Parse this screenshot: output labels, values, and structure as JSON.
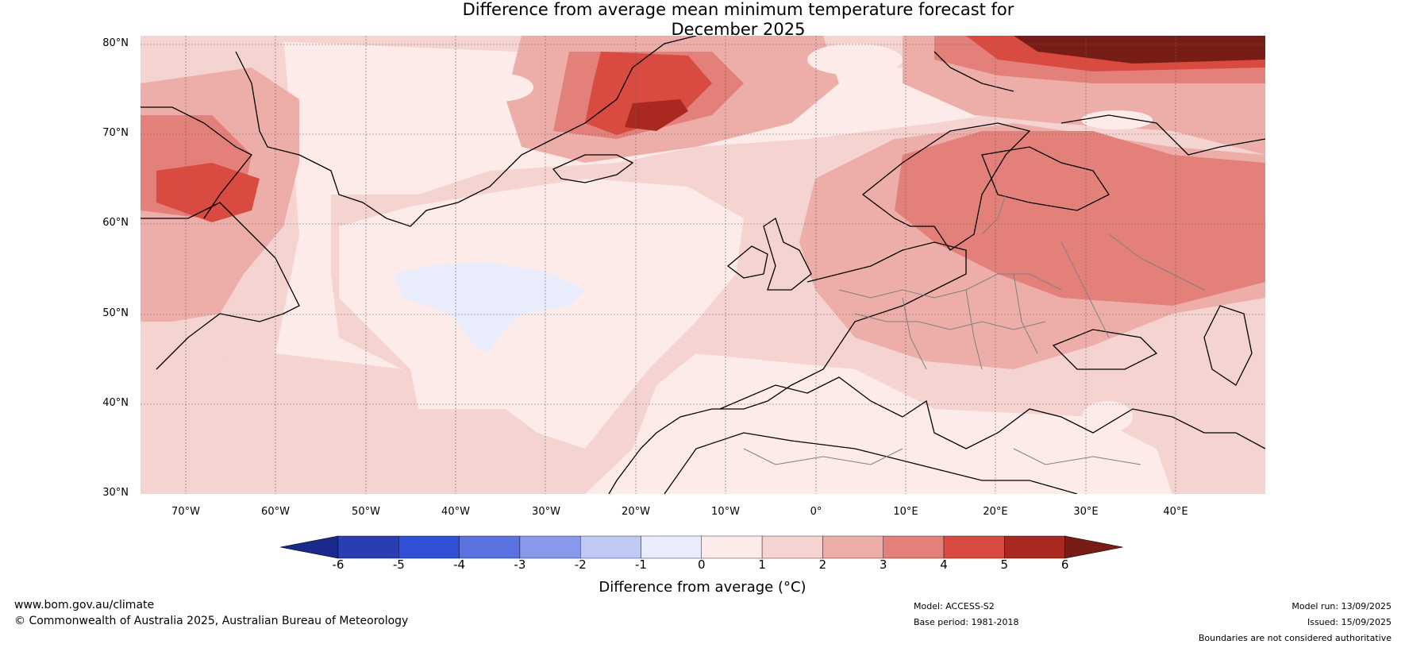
{
  "title_line1": "Difference from average mean minimum temperature forecast for",
  "title_line2": "December 2025",
  "lat_labels": [
    "80°N",
    "70°N",
    "60°N",
    "50°N",
    "40°N",
    "30°N"
  ],
  "lon_labels": [
    "70°W",
    "60°W",
    "50°W",
    "40°W",
    "30°W",
    "20°W",
    "10°W",
    "0°",
    "10°E",
    "20°E",
    "30°E",
    "40°E"
  ],
  "colorbar": {
    "ticks": [
      "-6",
      "-5",
      "-4",
      "-3",
      "-2",
      "-1",
      "0",
      "1",
      "2",
      "3",
      "4",
      "5",
      "6"
    ],
    "label": "Difference from average (°C)",
    "colors": [
      "#1a2a8c",
      "#2a3db3",
      "#3150d8",
      "#5a73e0",
      "#8898ea",
      "#c0c9f3",
      "#e8ecfb",
      "#fcebe8",
      "#f5d3d0",
      "#edaeaa",
      "#e4807a",
      "#d94a40",
      "#a9281f",
      "#781c16"
    ]
  },
  "footer": {
    "site": "www.bom.gov.au/climate",
    "copyright": "© Commonwealth of Australia 2025, Australian Bureau of Meteorology",
    "model": "Model: ACCESS-S2",
    "base_period": "Base period: 1981-2018",
    "model_run": "Model run: 13/09/2025",
    "issued": "Issued: 15/09/2025",
    "disclaimer": "Boundaries are not considered authoritative"
  }
}
